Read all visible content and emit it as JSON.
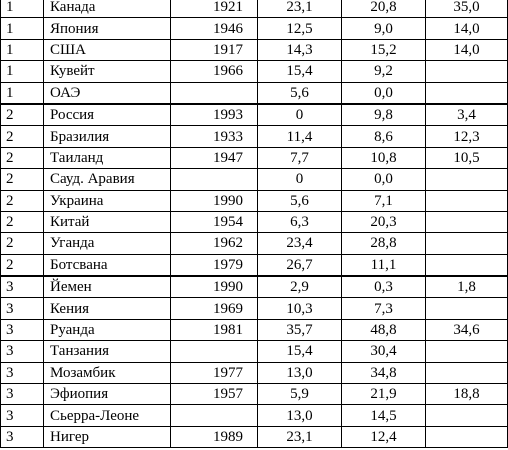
{
  "table": {
    "rows": [
      {
        "group": "1",
        "country": "Канада",
        "year": "1921",
        "v1": "23,1",
        "v2": "20,8",
        "v3": "35,0"
      },
      {
        "group": "1",
        "country": "Япония",
        "year": "1946",
        "v1": "12,5",
        "v2": "9,0",
        "v3": "14,0"
      },
      {
        "group": "1",
        "country": "США",
        "year": "1917",
        "v1": "14,3",
        "v2": "15,2",
        "v3": "14,0"
      },
      {
        "group": "1",
        "country": "Кувейт",
        "year": "1966",
        "v1": "15,4",
        "v2": "9,2",
        "v3": ""
      },
      {
        "group": "1",
        "country": "ОАЭ",
        "year": "",
        "v1": "5,6",
        "v2": "0,0",
        "v3": ""
      },
      {
        "group": "2",
        "country": "Россия",
        "year": "1993",
        "v1": "0",
        "v2": "9,8",
        "v3": "3,4"
      },
      {
        "group": "2",
        "country": "Бразилия",
        "year": "1933",
        "v1": "11,4",
        "v2": "8,6",
        "v3": "12,3"
      },
      {
        "group": "2",
        "country": "Таиланд",
        "year": "1947",
        "v1": "7,7",
        "v2": "10,8",
        "v3": "10,5"
      },
      {
        "group": "2",
        "country": "Сауд. Аравия",
        "year": "",
        "v1": "0",
        "v2": "0,0",
        "v3": ""
      },
      {
        "group": "2",
        "country": "Украина",
        "year": "1990",
        "v1": "5,6",
        "v2": "7,1",
        "v3": ""
      },
      {
        "group": "2",
        "country": "Китай",
        "year": "1954",
        "v1": "6,3",
        "v2": "20,3",
        "v3": ""
      },
      {
        "group": "2",
        "country": "Уганда",
        "year": "1962",
        "v1": "23,4",
        "v2": "28,8",
        "v3": ""
      },
      {
        "group": "2",
        "country": "Ботсвана",
        "year": "1979",
        "v1": "26,7",
        "v2": "11,1",
        "v3": ""
      },
      {
        "group": "3",
        "country": "Йемен",
        "year": "1990",
        "v1": "2,9",
        "v2": "0,3",
        "v3": "1,8"
      },
      {
        "group": "3",
        "country": "Кения",
        "year": "1969",
        "v1": "10,3",
        "v2": "7,3",
        "v3": ""
      },
      {
        "group": "3",
        "country": "Руанда",
        "year": "1981",
        "v1": "35,7",
        "v2": "48,8",
        "v3": "34,6"
      },
      {
        "group": "3",
        "country": "Танзания",
        "year": "",
        "v1": "15,4",
        "v2": "30,4",
        "v3": ""
      },
      {
        "group": "3",
        "country": "Мозамбик",
        "year": "1977",
        "v1": "13,0",
        "v2": "34,8",
        "v3": ""
      },
      {
        "group": "3",
        "country": "Эфиопия",
        "year": "1957",
        "v1": "5,9",
        "v2": "21,9",
        "v3": "18,8"
      },
      {
        "group": "3",
        "country": "Сьерра-Леоне",
        "year": "",
        "v1": "13,0",
        "v2": "14,5",
        "v3": ""
      },
      {
        "group": "3",
        "country": "Нигер",
        "year": "1989",
        "v1": "23,1",
        "v2": "12,4",
        "v3": ""
      }
    ]
  }
}
